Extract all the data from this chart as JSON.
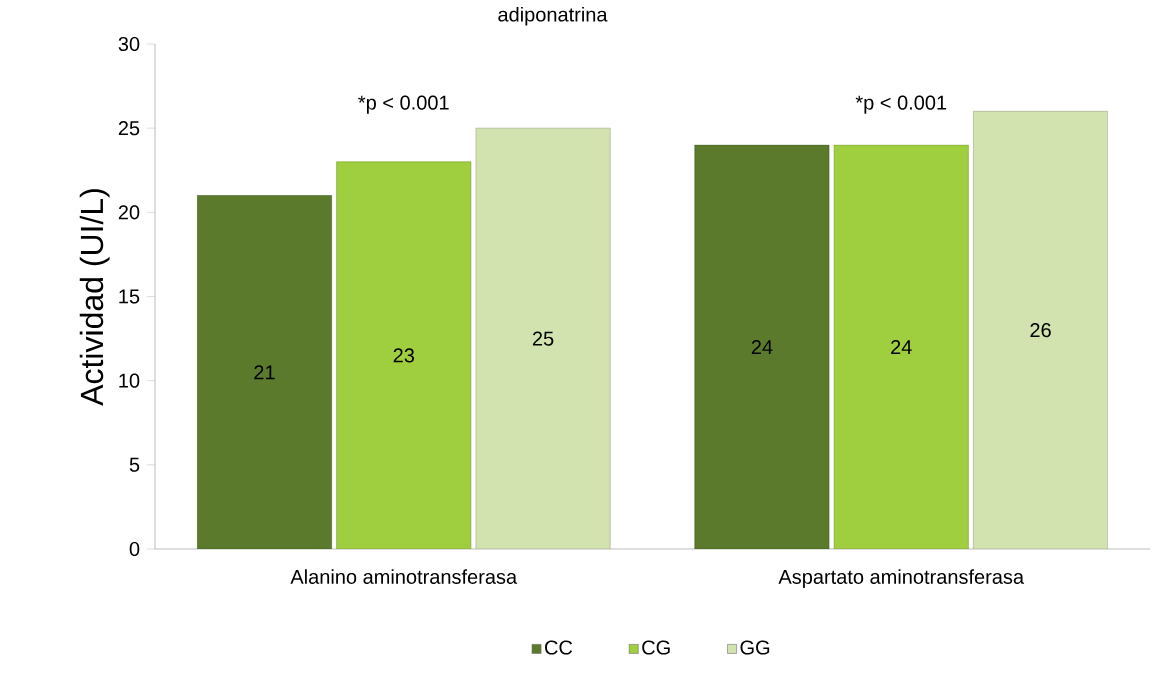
{
  "chart_data": {
    "type": "bar",
    "title": "adiponatrina",
    "ylabel": "Actividad (UI/L)",
    "categories": [
      "Alanino aminotransferasa",
      "Aspartato aminotransferasa"
    ],
    "series": [
      {
        "name": "CC",
        "color": "#5b7a2c",
        "values": [
          21,
          24
        ]
      },
      {
        "name": "CG",
        "color": "#9fcf3f",
        "values": [
          23,
          24
        ]
      },
      {
        "name": "GG",
        "color": "#d2e3b0",
        "values": [
          25,
          26
        ]
      }
    ],
    "ylim": [
      0,
      30
    ],
    "yticks": [
      0,
      5,
      10,
      15,
      20,
      25,
      30
    ],
    "annotations": [
      "*p < 0.001",
      "*p < 0.001"
    ],
    "data_labels": true,
    "legend": "bottom",
    "grid": false
  }
}
